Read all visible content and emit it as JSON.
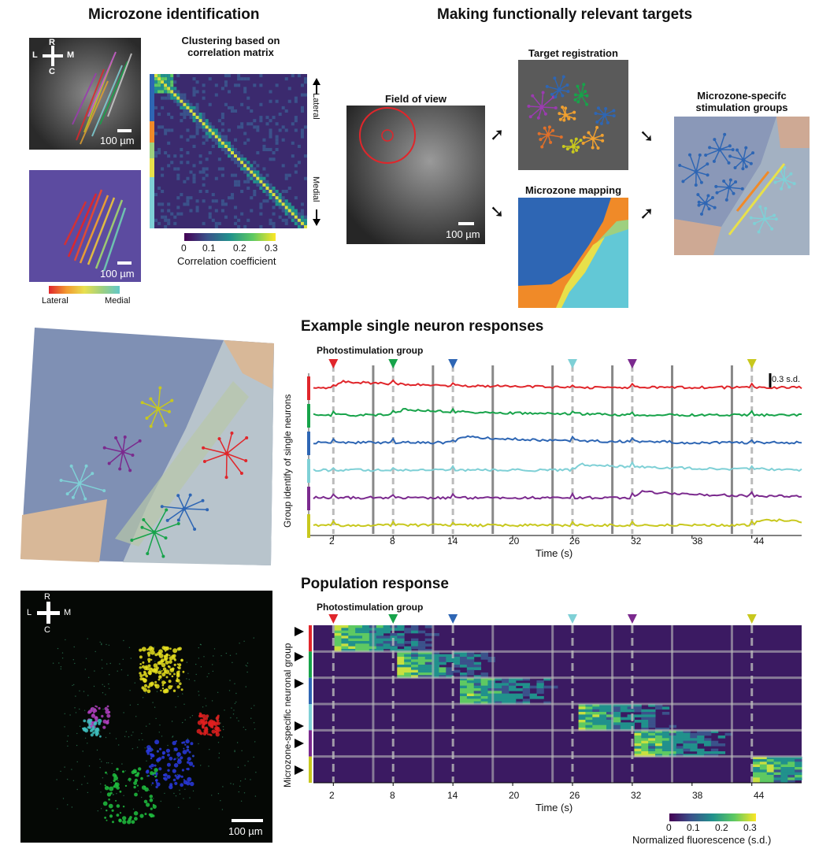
{
  "section_titles": {
    "microzone": "Microzone identification",
    "targets": "Making functionally relevant targets",
    "single": "Example single neuron responses",
    "population": "Population response"
  },
  "panels": {
    "clustering": "Clustering based on\ncorrelation matrix",
    "fov": "Field of view",
    "target_reg": "Target registration",
    "mz_mapping": "Microzone mapping",
    "stim_groups": "Microzone-specifc\nstimulation groups"
  },
  "compass": {
    "r": "R",
    "l": "L",
    "m": "M",
    "c": "C"
  },
  "scale_bar": "100 µm",
  "corr_matrix": {
    "axis_right_top": "Lateral",
    "axis_right_bottom": "Medial",
    "colorbar_label": "Correlation coefficient",
    "colorbar_ticks": [
      "0",
      "0.1",
      "0.2",
      "0.3"
    ]
  },
  "lateral_medial_bar": {
    "left": "Lateral",
    "right": "Medial"
  },
  "colors": {
    "red": "#e0262b",
    "green": "#17a34a",
    "blue": "#2e66b4",
    "cyan": "#7fd0d6",
    "purple": "#7b2a8e",
    "yellow": "#c8c81e"
  },
  "single_neuron": {
    "photostim_label": "Photostimulation group",
    "ylabel": "Group identify of single neurons",
    "xlabel": "Time (s)",
    "scale_label": "0.3 s.d.",
    "x_ticks": [
      "2",
      "8",
      "14",
      "20",
      "26",
      "32",
      "38",
      "44"
    ]
  },
  "population": {
    "photostim_label": "Photostimulation group",
    "ylabel": "Microzone-specific neuronal group",
    "xlabel": "Time (s)",
    "x_ticks": [
      "2",
      "8",
      "14",
      "20",
      "26",
      "32",
      "38",
      "44"
    ],
    "colorbar_label": "Normalized fluorescence (s.d.)",
    "colorbar_ticks": [
      "0",
      "0.1",
      "0.2",
      "0.3"
    ]
  },
  "chart_data": [
    {
      "type": "line",
      "x_range": [
        0,
        49
      ],
      "stim_times": [
        2,
        8,
        14,
        26,
        32,
        44
      ],
      "stim_groups": [
        "red",
        "green",
        "blue",
        "cyan",
        "purple",
        "yellow"
      ],
      "series_colors": [
        "red",
        "green",
        "blue",
        "cyan",
        "purple",
        "yellow"
      ],
      "ticks": [
        2,
        8,
        14,
        20,
        26,
        32,
        38,
        44
      ]
    },
    {
      "type": "heatmap",
      "x_range": [
        0,
        49
      ],
      "value_range": [
        0,
        0.3
      ],
      "ticks": [
        2,
        8,
        14,
        20,
        26,
        32,
        38,
        44
      ]
    }
  ]
}
